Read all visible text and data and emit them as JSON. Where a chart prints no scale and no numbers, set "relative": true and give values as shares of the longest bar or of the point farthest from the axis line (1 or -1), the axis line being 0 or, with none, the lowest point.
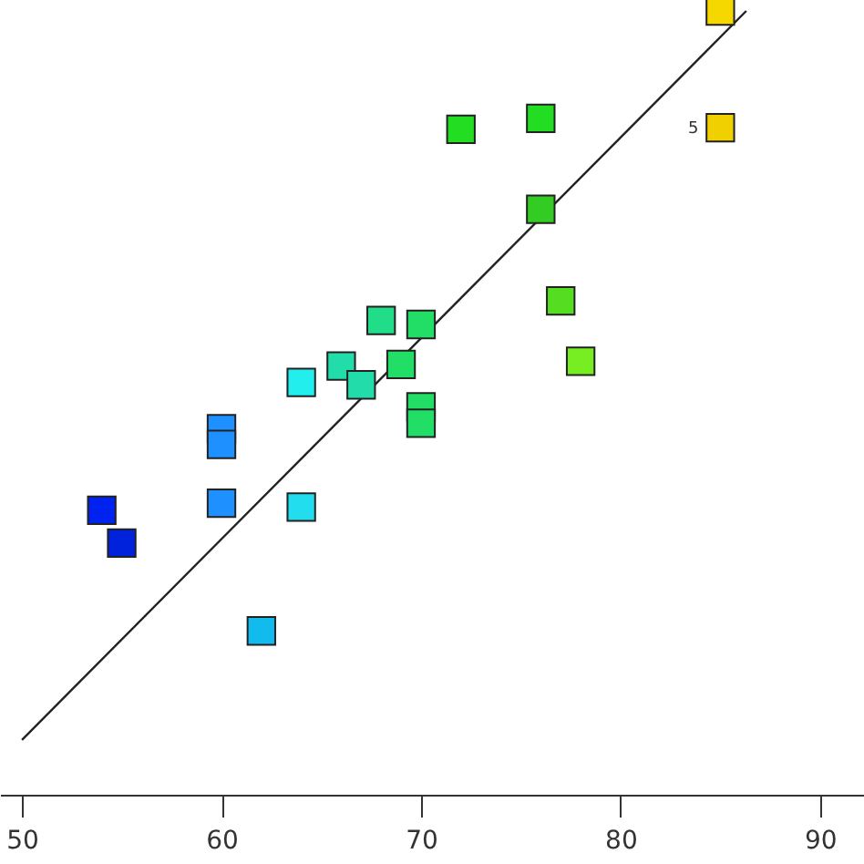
{
  "chart_data": {
    "type": "scatter",
    "relative": true,
    "grid": false,
    "xlim": [
      48.9,
      92.2
    ],
    "xticks": [
      50,
      60,
      70,
      80,
      90
    ],
    "series": [
      {
        "marker": "square",
        "x": [
          85,
          85,
          72,
          76,
          76,
          77,
          78,
          68,
          70,
          66,
          67,
          69,
          64,
          70,
          70,
          60,
          60,
          60,
          64,
          54,
          55,
          62
        ],
        "values": [
          1.0,
          0.851,
          0.849,
          0.863,
          0.747,
          0.63,
          0.553,
          0.605,
          0.6,
          0.547,
          0.523,
          0.549,
          0.526,
          0.495,
          0.474,
          0.467,
          0.447,
          0.372,
          0.367,
          0.363,
          0.321,
          0.209
        ],
        "colors": [
          "#f5d800",
          "#f0d000",
          "#22dd22",
          "#22dd22",
          "#33cc22",
          "#55dd22",
          "#77ee22",
          "#22dd88",
          "#22dd66",
          "#22ddaa",
          "#22ddaa",
          "#22dd66",
          "#22eeee",
          "#22dd66",
          "#22dd66",
          "#1e90ff",
          "#1e90ff",
          "#1e90ff",
          "#22ddee",
          "#0022ee",
          "#0022dd",
          "#11bbee"
        ]
      },
      {
        "type": "line",
        "marker": "none",
        "x": [
          50,
          86.3
        ],
        "values": [
          0.07,
          1.0
        ],
        "color": "#222222"
      }
    ],
    "annotations": [
      {
        "text": "5",
        "x": 85,
        "y": 0.851
      }
    ]
  }
}
